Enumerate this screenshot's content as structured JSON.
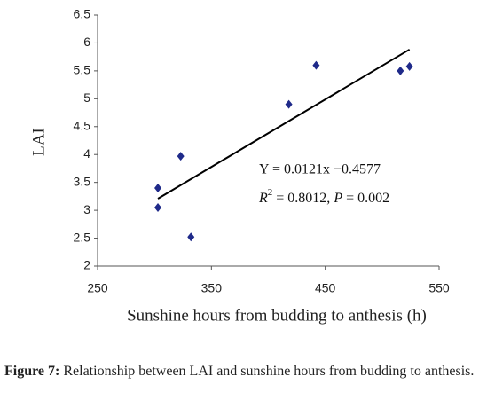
{
  "chart_data": {
    "type": "scatter",
    "x_label": "Sunshine hours from budding to anthesis (h)",
    "y_label": "LAI",
    "x": [
      303,
      303,
      323,
      332,
      418,
      442,
      516,
      524
    ],
    "values": [
      3.4,
      3.05,
      3.97,
      2.52,
      4.9,
      5.6,
      5.5,
      5.58
    ],
    "color": "#1f2a8a",
    "xlim": [
      250,
      550
    ],
    "xticks": [
      250,
      350,
      450,
      550
    ],
    "ylim": [
      2,
      6.5
    ],
    "yticks": [
      2,
      2.5,
      3,
      3.5,
      4,
      4.5,
      5,
      5.5,
      6,
      6.5
    ],
    "grid": false,
    "fit": {
      "slope": 0.0121,
      "intercept": -0.4577,
      "x_range": [
        303,
        524
      ],
      "color": "#000000"
    },
    "equation": "Y = 0.0121x −0.4577",
    "r2_label": [
      "R",
      "2",
      " = 0.8012, ",
      "P",
      " = 0.002"
    ]
  },
  "caption": {
    "label": "Figure 7:",
    "text": "Relationship between LAI and sunshine hours from budding to anthesis."
  }
}
